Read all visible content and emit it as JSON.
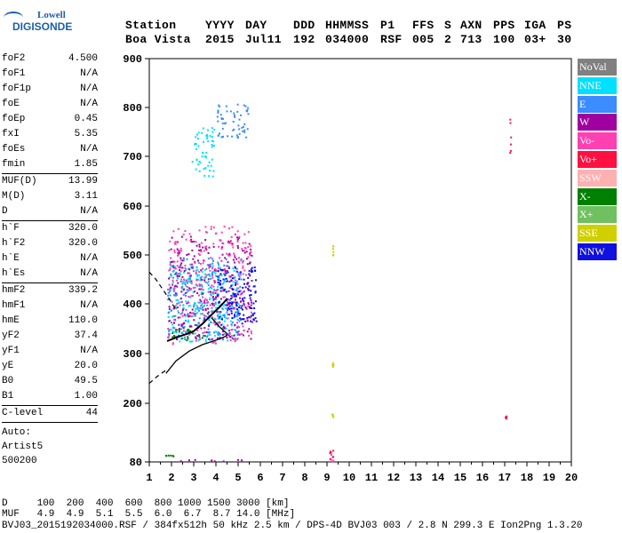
{
  "logo": {
    "line1": "Lowell",
    "line2": "DIGISONDE"
  },
  "header": {
    "row1": [
      "Station",
      "YYYY",
      "DAY",
      "DDD",
      "HHMMSS",
      "P1",
      "FFS",
      "S",
      "AXN",
      "PPS",
      "IGA",
      "PS"
    ],
    "row2": [
      "Boa Vista",
      "2015",
      "Jul11",
      "192",
      "034000",
      "RSF",
      "005",
      "2",
      "713",
      "100",
      "03+",
      "30"
    ]
  },
  "params": {
    "g1": [
      {
        "k": "foF2",
        "v": "4.500"
      },
      {
        "k": "foF1",
        "v": "N/A"
      },
      {
        "k": "foF1p",
        "v": "N/A"
      },
      {
        "k": "foE",
        "v": "N/A"
      },
      {
        "k": "foEp",
        "v": "0.45"
      },
      {
        "k": "fxI",
        "v": "5.35"
      },
      {
        "k": "foEs",
        "v": "N/A"
      },
      {
        "k": "fmin",
        "v": "1.85"
      }
    ],
    "g2": [
      {
        "k": "MUF(D)",
        "v": "13.99"
      },
      {
        "k": "M(D)",
        "v": "3.11"
      },
      {
        "k": "D",
        "v": "N/A"
      }
    ],
    "g3": [
      {
        "k": "h`F",
        "v": "320.0"
      },
      {
        "k": "h`F2",
        "v": "320.0"
      },
      {
        "k": "h`E",
        "v": "N/A"
      },
      {
        "k": "h`Es",
        "v": "N/A"
      }
    ],
    "g4": [
      {
        "k": "hmF2",
        "v": "339.2"
      },
      {
        "k": "hmF1",
        "v": "N/A"
      },
      {
        "k": "hmE",
        "v": "110.0"
      },
      {
        "k": "yF2",
        "v": "37.4"
      },
      {
        "k": "yF1",
        "v": "N/A"
      },
      {
        "k": "yE",
        "v": "20.0"
      },
      {
        "k": "B0",
        "v": "49.5"
      },
      {
        "k": "B1",
        "v": "1.00"
      }
    ],
    "clevel": {
      "k": "C-level",
      "v": "44"
    },
    "auto": [
      "Auto:",
      "Artist5",
      "500200"
    ]
  },
  "legend": [
    {
      "label": "NoVal",
      "color": "#808080"
    },
    {
      "label": "NNE",
      "color": "#00e0ff"
    },
    {
      "label": "E",
      "color": "#3a8cff"
    },
    {
      "label": "W",
      "color": "#a000a0"
    },
    {
      "label": "Vo-",
      "color": "#ff40b0"
    },
    {
      "label": "Vo+",
      "color": "#ff1040"
    },
    {
      "label": "SSW",
      "color": "#ffb0b0"
    },
    {
      "label": "X-",
      "color": "#008000"
    },
    {
      "label": "X+",
      "color": "#70c060"
    },
    {
      "label": "SSE",
      "color": "#d0d000"
    },
    {
      "label": "NNW",
      "color": "#1010e0"
    }
  ],
  "footer": {
    "line1": "D     100  200  400  600  800 1000 1500 3000 [km]",
    "line2": "MUF   4.9  4.9  5.1  5.5  6.0  6.7  8.7 14.0 [MHz]",
    "line3": "BVJ03_2015192034000.RSF / 384fx512h 50 kHz 2.5 km / DPS-4D BVJ03 003 / 2.8 N 299.3 E Ion2Png 1.3.20"
  },
  "chart_data": {
    "type": "scatter",
    "xlim": [
      1,
      20
    ],
    "ylim": [
      80,
      900
    ],
    "x_ticks": [
      "1",
      "2",
      "3",
      "4",
      "5",
      "6",
      "7",
      "8",
      "9",
      "10",
      "11",
      "12",
      "13",
      "14",
      "15",
      "16",
      "17",
      "18",
      "19",
      "20"
    ],
    "y_ticks": [
      "80",
      "200",
      "300",
      "400",
      "500",
      "600",
      "700",
      "800",
      "900"
    ],
    "grid": false,
    "legend_position": "right",
    "series": [
      {
        "name": "NNE",
        "color": "#00e0ff",
        "clusters": [
          [
            1.8,
            5.0,
            325,
            480
          ],
          [
            2.9,
            3.9,
            660,
            760
          ]
        ]
      },
      {
        "name": "E",
        "color": "#3a8cff",
        "clusters": [
          [
            1.8,
            5.2,
            330,
            500
          ],
          [
            4.0,
            5.5,
            740,
            810
          ]
        ]
      },
      {
        "name": "W",
        "color": "#a000a0",
        "clusters": [
          [
            1.8,
            5.6,
            330,
            540
          ],
          [
            1.7,
            5.2,
            82,
            86
          ]
        ]
      },
      {
        "name": "Vo-",
        "color": "#ff40b0",
        "clusters": [
          [
            1.8,
            5.6,
            320,
            560
          ],
          [
            9.1,
            9.25,
            82,
            100
          ]
        ]
      },
      {
        "name": "Vo+",
        "color": "#ff1040",
        "clusters": [
          [
            9.1,
            9.25,
            85,
            105
          ],
          [
            17.2,
            17.25,
            700,
            780
          ],
          [
            17.0,
            17.05,
            170,
            175
          ]
        ]
      },
      {
        "name": "X-",
        "color": "#008000",
        "clusters": [
          [
            1.6,
            2.2,
            92,
            95
          ],
          [
            1.9,
            3.5,
            325,
            350
          ]
        ]
      },
      {
        "name": "SSE",
        "color": "#d0d000",
        "clusters": [
          [
            9.2,
            9.25,
            275,
            290
          ],
          [
            9.2,
            9.25,
            490,
            525
          ],
          [
            9.2,
            9.25,
            170,
            180
          ]
        ]
      },
      {
        "name": "NNW",
        "color": "#1010e0",
        "clusters": [
          [
            4.0,
            5.8,
            360,
            480
          ]
        ]
      }
    ],
    "profile_lines": {
      "profile_solid": [
        [
          1.75,
          260
        ],
        [
          2.2,
          285
        ],
        [
          2.8,
          305
        ],
        [
          3.4,
          318
        ],
        [
          3.8,
          324
        ],
        [
          4.2,
          330
        ],
        [
          4.45,
          335
        ],
        [
          4.5,
          340
        ],
        [
          4.2,
          352
        ],
        [
          3.8,
          372
        ]
      ],
      "profile_dashed_upper": [
        [
          1.0,
          465
        ],
        [
          1.3,
          450
        ],
        [
          1.6,
          430
        ],
        [
          1.9,
          410
        ],
        [
          2.1,
          395
        ],
        [
          2.3,
          385
        ]
      ],
      "profile_dashed_lower": [
        [
          1.0,
          240
        ],
        [
          1.3,
          252
        ],
        [
          1.6,
          262
        ],
        [
          1.75,
          266
        ]
      ],
      "trace": [
        [
          1.8,
          325
        ],
        [
          2.2,
          332
        ],
        [
          2.6,
          338
        ],
        [
          3.0,
          345
        ],
        [
          3.4,
          360
        ],
        [
          3.8,
          378
        ],
        [
          4.2,
          395
        ],
        [
          4.5,
          410
        ]
      ]
    }
  }
}
